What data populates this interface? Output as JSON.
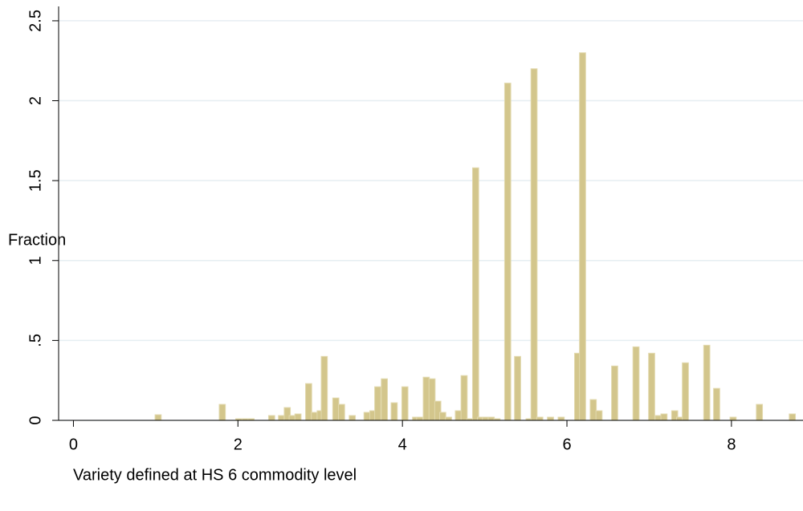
{
  "chart_data": {
    "type": "bar",
    "xlabel": "Variety defined at HS 6 commodity level",
    "ylabel": "Fraction",
    "x": [
      1.03,
      1.81,
      2.01,
      2.09,
      2.16,
      2.41,
      2.53,
      2.6,
      2.66,
      2.73,
      2.86,
      2.93,
      3.0,
      3.05,
      3.19,
      3.26,
      3.39,
      3.57,
      3.64,
      3.7,
      3.78,
      3.9,
      4.03,
      4.16,
      4.21,
      4.29,
      4.36,
      4.43,
      4.49,
      4.56,
      4.68,
      4.75,
      4.82,
      4.89,
      4.95,
      5.01,
      5.08,
      5.15,
      5.28,
      5.4,
      5.54,
      5.6,
      5.67,
      5.8,
      5.93,
      6.13,
      6.19,
      6.32,
      6.39,
      6.58,
      6.84,
      7.03,
      7.11,
      7.18,
      7.31,
      7.37,
      7.44,
      7.7,
      7.82,
      8.02,
      8.34,
      8.74
    ],
    "values": [
      0.035,
      0.1,
      0.01,
      0.01,
      0.01,
      0.03,
      0.03,
      0.08,
      0.03,
      0.04,
      0.23,
      0.05,
      0.06,
      0.4,
      0.14,
      0.1,
      0.03,
      0.05,
      0.06,
      0.21,
      0.26,
      0.11,
      0.21,
      0.02,
      0.02,
      0.27,
      0.26,
      0.12,
      0.05,
      0.02,
      0.06,
      0.28,
      0.01,
      1.58,
      0.02,
      0.02,
      0.02,
      0.01,
      2.11,
      0.4,
      0.01,
      2.2,
      0.02,
      0.02,
      0.02,
      0.42,
      2.3,
      0.13,
      0.06,
      0.34,
      0.46,
      0.42,
      0.03,
      0.04,
      0.06,
      0.02,
      0.36,
      0.47,
      0.2,
      0.02,
      0.1,
      0.04
    ],
    "color": "#d3c68c",
    "xlim": [
      -0.18,
      8.87
    ],
    "ylim": [
      0,
      2.59
    ],
    "xticks": [
      0,
      2,
      4,
      6,
      8
    ],
    "yticks": [
      0,
      {
        "value": 0.5,
        "label": ".5"
      },
      1,
      1.5,
      2,
      2.5
    ],
    "grid": true
  }
}
